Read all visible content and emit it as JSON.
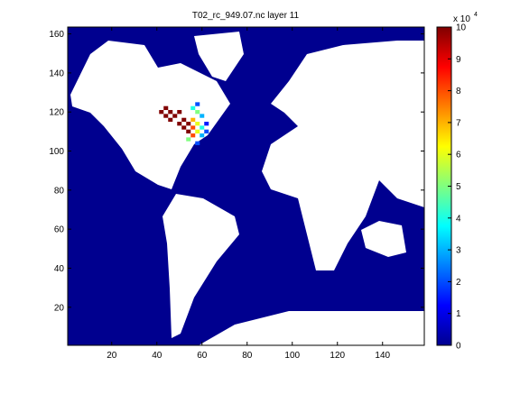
{
  "chart_data": {
    "type": "heatmap",
    "title": "T02_rc_949.07.nc layer 11",
    "xlim": [
      0.5,
      158.5
    ],
    "xticks": [
      20,
      40,
      60,
      80,
      100,
      120,
      140
    ],
    "ylim": [
      0.5,
      163.5
    ],
    "yticks": [
      20,
      40,
      60,
      80,
      100,
      120,
      140,
      160
    ],
    "cells": {
      "x": [
        42,
        44,
        46,
        48,
        50,
        52,
        54,
        46,
        44,
        52,
        50,
        54,
        56,
        56,
        58,
        56,
        58,
        60,
        60,
        62,
        58,
        60,
        56,
        58,
        62,
        58,
        54
      ],
      "y": [
        120,
        118,
        116,
        118,
        120,
        116,
        114,
        120,
        122,
        112,
        114,
        110,
        112,
        116,
        114,
        108,
        110,
        112,
        108,
        110,
        120,
        118,
        122,
        124,
        114,
        104,
        106
      ],
      "values": [
        10,
        10,
        10,
        10,
        10,
        10,
        10,
        10,
        10,
        10,
        10,
        10,
        8,
        7,
        6,
        8,
        6,
        4,
        3,
        2,
        5,
        3,
        4,
        2,
        1.5,
        2,
        5
      ]
    },
    "colorbar_lim": [
      0,
      10
    ],
    "colorbar_ticks": [
      0,
      1,
      2,
      3,
      4,
      5,
      6,
      7,
      8,
      9,
      10
    ],
    "colorbar_label": "x 10",
    "colorbar_exponent": "4"
  }
}
